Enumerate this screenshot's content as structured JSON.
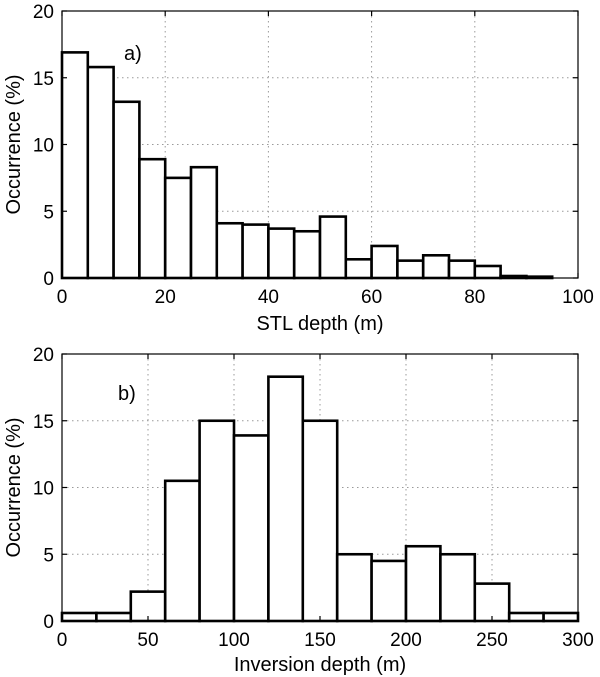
{
  "chart_data": [
    {
      "type": "bar",
      "panel_label": "a)",
      "title": "",
      "xlabel": "STL depth (m)",
      "ylabel": "Occurrence (%)",
      "xlim": [
        0,
        100
      ],
      "ylim": [
        0,
        20
      ],
      "xticks": [
        0,
        20,
        40,
        60,
        80,
        100
      ],
      "yticks": [
        0,
        5,
        10,
        15,
        20
      ],
      "grid": true,
      "bin_width": 5,
      "bin_starts": [
        0,
        5,
        10,
        15,
        20,
        25,
        30,
        35,
        40,
        45,
        50,
        55,
        60,
        65,
        70,
        75,
        80,
        85,
        90
      ],
      "values": [
        16.9,
        15.8,
        13.2,
        8.9,
        7.5,
        8.3,
        4.1,
        4.0,
        3.7,
        3.5,
        4.6,
        1.4,
        2.4,
        1.3,
        1.7,
        1.3,
        0.9,
        0.15,
        0.1
      ]
    },
    {
      "type": "bar",
      "panel_label": "b)",
      "title": "",
      "xlabel": "Inversion depth (m)",
      "ylabel": "Occurrence (%)",
      "xlim": [
        0,
        300
      ],
      "ylim": [
        0,
        20
      ],
      "xticks": [
        0,
        50,
        100,
        150,
        200,
        250,
        300
      ],
      "yticks": [
        0,
        5,
        10,
        15,
        20
      ],
      "grid": true,
      "bin_width": 20,
      "bin_starts": [
        0,
        20,
        40,
        60,
        80,
        100,
        120,
        140,
        160,
        180,
        200,
        220,
        240,
        260,
        280
      ],
      "values": [
        0.6,
        0.6,
        2.2,
        10.5,
        15.0,
        13.9,
        18.3,
        15.0,
        5.0,
        4.5,
        5.6,
        5.0,
        2.8,
        0.6,
        0.6
      ]
    }
  ]
}
